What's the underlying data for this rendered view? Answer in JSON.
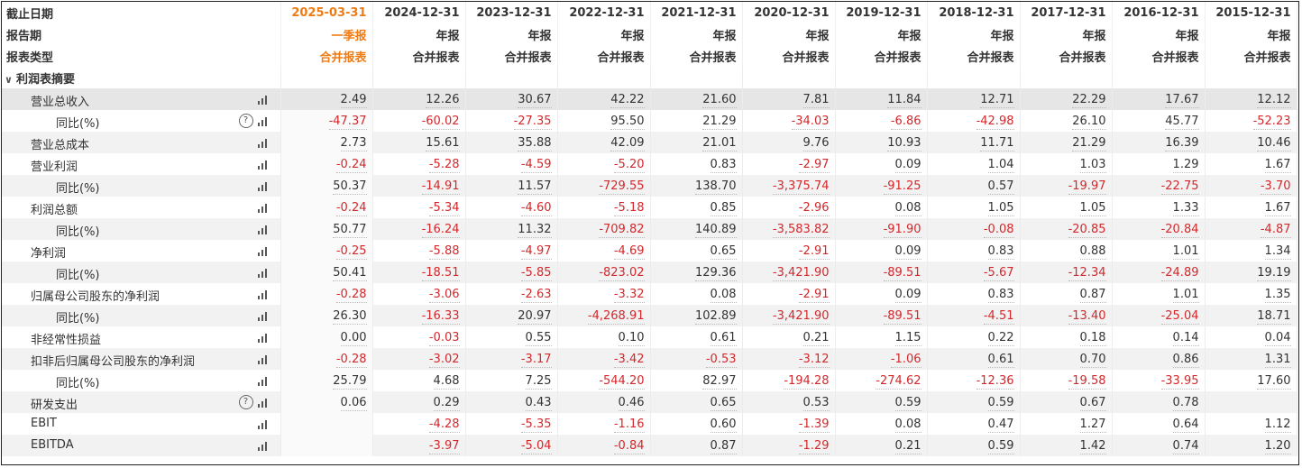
{
  "header": {
    "row_labels": [
      "截止日期",
      "报告期",
      "报表类型"
    ],
    "dates": [
      "2025-03-31",
      "2024-12-31",
      "2023-12-31",
      "2022-12-31",
      "2021-12-31",
      "2020-12-31",
      "2019-12-31",
      "2018-12-31",
      "2017-12-31",
      "2016-12-31",
      "2015-12-31"
    ],
    "periods": [
      "一季报",
      "年报",
      "年报",
      "年报",
      "年报",
      "年报",
      "年报",
      "年报",
      "年报",
      "年报",
      "年报"
    ],
    "types": [
      "合并报表",
      "合并报表",
      "合并报表",
      "合并报表",
      "合并报表",
      "合并报表",
      "合并报表",
      "合并报表",
      "合并报表",
      "合并报表",
      "合并报表"
    ]
  },
  "section": {
    "title": "利润表摘要"
  },
  "rows": [
    {
      "label": "营业总收入",
      "level": 1,
      "help": false,
      "values": [
        "2.49",
        "12.26",
        "30.67",
        "42.22",
        "21.60",
        "7.81",
        "11.84",
        "12.71",
        "22.29",
        "17.67",
        "12.12"
      ]
    },
    {
      "label": "同比(%)",
      "level": 2,
      "help": true,
      "values": [
        "-47.37",
        "-60.02",
        "-27.35",
        "95.50",
        "21.29",
        "-34.03",
        "-6.86",
        "-42.98",
        "26.10",
        "45.77",
        "-52.23"
      ]
    },
    {
      "label": "营业总成本",
      "level": 1,
      "help": false,
      "values": [
        "2.73",
        "15.61",
        "35.88",
        "42.09",
        "21.01",
        "9.76",
        "10.93",
        "11.71",
        "21.29",
        "16.39",
        "10.46"
      ]
    },
    {
      "label": "营业利润",
      "level": 1,
      "help": false,
      "values": [
        "-0.24",
        "-5.28",
        "-4.59",
        "-5.20",
        "0.83",
        "-2.97",
        "0.09",
        "1.04",
        "1.03",
        "1.29",
        "1.67"
      ]
    },
    {
      "label": "同比(%)",
      "level": 2,
      "help": false,
      "values": [
        "50.37",
        "-14.91",
        "11.57",
        "-729.55",
        "138.70",
        "-3,375.74",
        "-91.25",
        "0.57",
        "-19.97",
        "-22.75",
        "-3.70"
      ]
    },
    {
      "label": "利润总额",
      "level": 1,
      "help": false,
      "values": [
        "-0.24",
        "-5.34",
        "-4.60",
        "-5.18",
        "0.85",
        "-2.96",
        "0.08",
        "1.05",
        "1.05",
        "1.33",
        "1.67"
      ]
    },
    {
      "label": "同比(%)",
      "level": 2,
      "help": false,
      "values": [
        "50.77",
        "-16.24",
        "11.32",
        "-709.82",
        "140.89",
        "-3,583.82",
        "-91.90",
        "-0.08",
        "-20.85",
        "-20.84",
        "-4.87"
      ]
    },
    {
      "label": "净利润",
      "level": 1,
      "help": false,
      "values": [
        "-0.25",
        "-5.88",
        "-4.97",
        "-4.69",
        "0.65",
        "-2.91",
        "0.09",
        "0.83",
        "0.88",
        "1.01",
        "1.34"
      ]
    },
    {
      "label": "同比(%)",
      "level": 2,
      "help": false,
      "values": [
        "50.41",
        "-18.51",
        "-5.85",
        "-823.02",
        "129.36",
        "-3,421.90",
        "-89.51",
        "-5.67",
        "-12.34",
        "-24.89",
        "19.19"
      ]
    },
    {
      "label": "归属母公司股东的净利润",
      "level": 1,
      "help": false,
      "values": [
        "-0.28",
        "-3.06",
        "-2.63",
        "-3.32",
        "0.08",
        "-2.91",
        "0.09",
        "0.83",
        "0.87",
        "1.01",
        "1.35"
      ]
    },
    {
      "label": "同比(%)",
      "level": 2,
      "help": false,
      "values": [
        "26.30",
        "-16.33",
        "20.97",
        "-4,268.91",
        "102.89",
        "-3,421.90",
        "-89.51",
        "-4.51",
        "-13.40",
        "-25.04",
        "18.71"
      ]
    },
    {
      "label": "非经常性损益",
      "level": 1,
      "help": false,
      "values": [
        "0.00",
        "-0.03",
        "0.55",
        "0.10",
        "0.61",
        "0.21",
        "1.15",
        "0.22",
        "0.18",
        "0.14",
        "0.04"
      ]
    },
    {
      "label": "扣非后归属母公司股东的净利润",
      "level": 1,
      "help": false,
      "values": [
        "-0.28",
        "-3.02",
        "-3.17",
        "-3.42",
        "-0.53",
        "-3.12",
        "-1.06",
        "0.61",
        "0.70",
        "0.86",
        "1.31"
      ]
    },
    {
      "label": "同比(%)",
      "level": 2,
      "help": false,
      "values": [
        "25.79",
        "4.68",
        "7.25",
        "-544.20",
        "82.97",
        "-194.28",
        "-274.62",
        "-12.36",
        "-19.58",
        "-33.95",
        "17.60"
      ]
    },
    {
      "label": "研发支出",
      "level": 1,
      "help": true,
      "values": [
        "0.06",
        "0.29",
        "0.43",
        "0.46",
        "0.65",
        "0.53",
        "0.59",
        "0.59",
        "0.67",
        "0.78",
        ""
      ]
    },
    {
      "label": "EBIT",
      "level": 1,
      "help": false,
      "values": [
        "",
        "-4.28",
        "-5.35",
        "-1.16",
        "0.60",
        "-1.39",
        "0.08",
        "0.47",
        "1.27",
        "0.64",
        "1.12"
      ]
    },
    {
      "label": "EBITDA",
      "level": 1,
      "help": false,
      "values": [
        "",
        "-3.97",
        "-5.04",
        "-0.84",
        "0.87",
        "-1.29",
        "0.21",
        "0.59",
        "1.42",
        "0.74",
        "1.20"
      ]
    }
  ],
  "colors": {
    "accent": "#f07b12",
    "negative": "#d3282c",
    "highlight_row": "#e6e6e6"
  },
  "icons": {
    "bars": "bar-chart-icon",
    "help": "help-circle-icon",
    "collapse": "chevron-down-icon"
  }
}
